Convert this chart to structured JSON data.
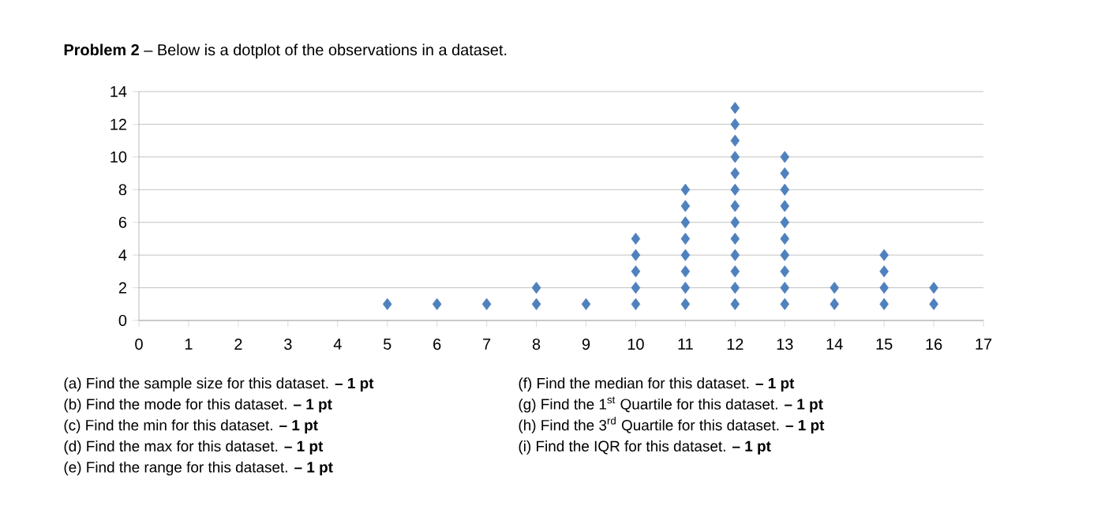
{
  "chart_data": {
    "type": "scatter",
    "title": "**Problem 2** – Below is a dotplot of the observations in a dataset.",
    "x": [
      5,
      6,
      7,
      8,
      8,
      9,
      10,
      10,
      10,
      10,
      10,
      11,
      11,
      11,
      11,
      11,
      11,
      11,
      11,
      12,
      12,
      12,
      12,
      12,
      12,
      12,
      12,
      12,
      12,
      12,
      12,
      12,
      13,
      13,
      13,
      13,
      13,
      13,
      13,
      13,
      13,
      13,
      14,
      14,
      15,
      15,
      15,
      15,
      16,
      16
    ],
    "series": [
      {
        "color": "#4f81bd",
        "values": [
          1,
          1,
          1,
          1,
          2,
          1,
          1,
          2,
          3,
          4,
          5,
          1,
          2,
          3,
          4,
          5,
          6,
          7,
          8,
          1,
          2,
          3,
          4,
          5,
          6,
          7,
          8,
          9,
          10,
          11,
          12,
          13,
          1,
          2,
          3,
          4,
          5,
          6,
          7,
          8,
          9,
          10,
          1,
          2,
          1,
          2,
          3,
          4,
          1,
          2
        ]
      }
    ],
    "xlim": [
      0,
      17
    ],
    "xticks": [
      0,
      1,
      2,
      3,
      4,
      5,
      6,
      7,
      8,
      9,
      10,
      11,
      12,
      13,
      14,
      15,
      16,
      17
    ],
    "ylim": [
      0,
      14
    ],
    "yticks": [
      0,
      2,
      4,
      6,
      8,
      10,
      12,
      14
    ],
    "grid": "y",
    "marker": "diamond",
    "annotations": [
      "(a)  Find the sample size for this dataset. **– 1 pt**",
      "(b)  Find the mode for this dataset. **– 1 pt**",
      "(c)  Find the min for this dataset. **– 1 pt**",
      "(d)  Find the max for this dataset. **– 1 pt**",
      "(e)  Find the range for this dataset. **– 1 pt**",
      "(f)  Find the median for this dataset. **– 1 pt**",
      "(g)  Find the 1$^{st}$ Quartile for this dataset. **– 1 pt**",
      "(h)  Find the 3$^{rd}$ Quartile for this dataset. **– 1 pt**",
      "(i)  Find the IQR for this dataset. **– 1 pt**"
    ]
  }
}
